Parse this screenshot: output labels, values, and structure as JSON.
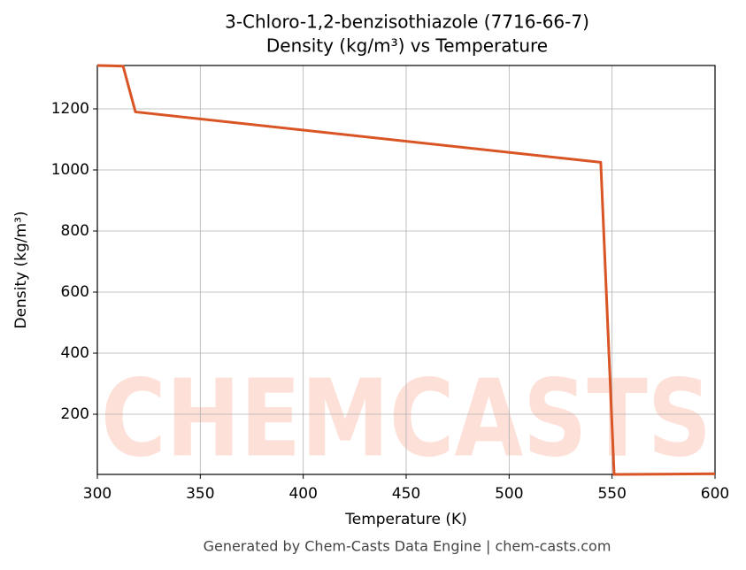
{
  "chart_data": {
    "type": "line",
    "title": "3-Chloro-1,2-benzisothiazole (7716-66-7)",
    "subtitle": "Density (kg/m³) vs Temperature",
    "x_label": "Temperature (K)",
    "y_label": "Density (kg/m³)",
    "x": [
      300,
      312.5,
      318.5,
      544.5,
      551,
      600
    ],
    "series": [
      {
        "name": "Density",
        "color": "#d95525",
        "values": [
          1342,
          1340,
          1190,
          1025,
          3,
          5
        ]
      }
    ],
    "xlim": [
      300,
      600
    ],
    "xticks": [
      300,
      350,
      400,
      450,
      500,
      550,
      600
    ],
    "ylim": [
      3,
      1342
    ],
    "yticks": [
      200,
      400,
      600,
      800,
      1000,
      1200
    ],
    "grid": true,
    "watermark": "CHEMCASTS",
    "footer": "Generated by Chem-Casts Data Engine | chem-casts.com"
  }
}
